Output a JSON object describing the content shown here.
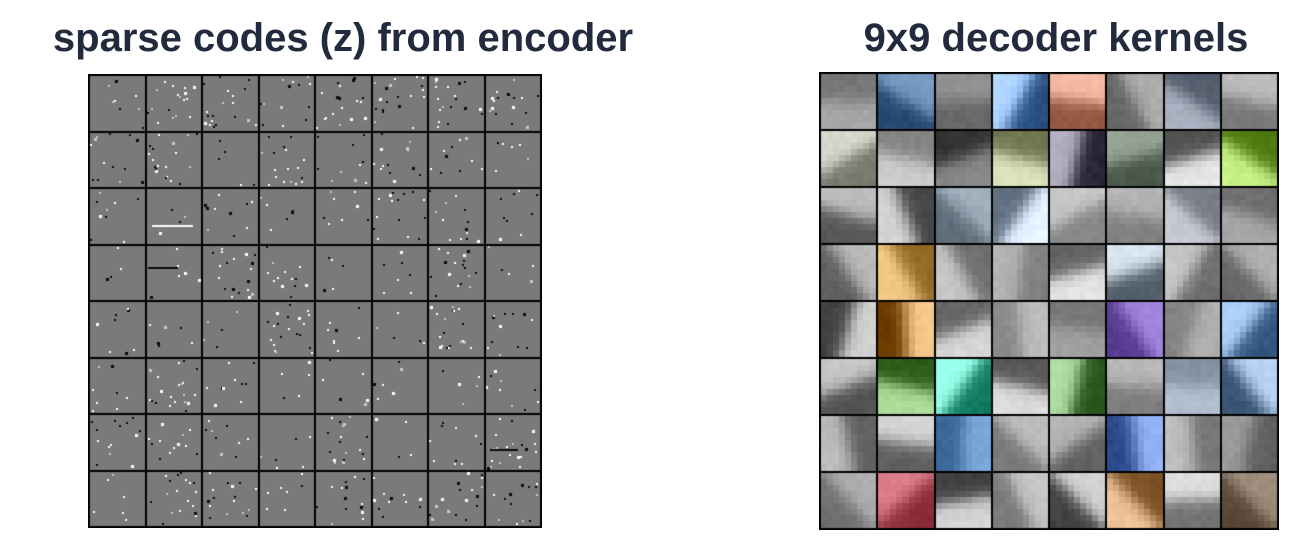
{
  "titles": {
    "codes": "sparse codes (z) from encoder",
    "kernels": "9x9 decoder kernels"
  },
  "codes_grid": {
    "rows": 8,
    "cols": 8,
    "tile_background": "#7a7a7a",
    "separator": "#000000"
  },
  "kernels_grid": {
    "rows": 8,
    "cols": 8,
    "separator": "#000000"
  }
}
